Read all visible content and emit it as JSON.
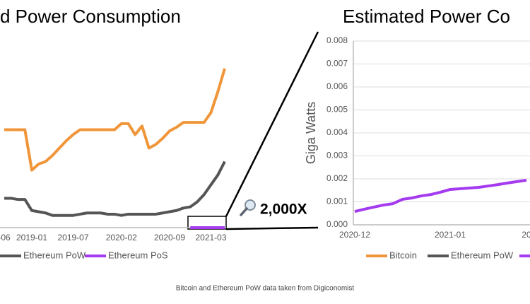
{
  "chart_data": [
    {
      "type": "line",
      "title": "d Power Consumption",
      "categories": [
        "-06",
        null,
        null,
        null,
        "2019-01",
        null,
        null,
        null,
        null,
        null,
        "2019-07",
        null,
        null,
        null,
        null,
        null,
        null,
        "2020-02",
        null,
        null,
        null,
        null,
        null,
        null,
        "2020-09",
        null,
        null,
        null,
        null,
        null,
        "2021-03",
        null,
        null
      ],
      "ylim": [
        0,
        16
      ],
      "series": [
        {
          "color": "#f0963a",
          "values": [
            8.0,
            8.0,
            8.0,
            8.0,
            4.7,
            5.2,
            5.4,
            5.9,
            6.5,
            7.1,
            7.6,
            8.0,
            8.0,
            8.0,
            8.0,
            8.0,
            8.0,
            8.5,
            8.5,
            7.6,
            8.3,
            6.5,
            6.8,
            7.3,
            7.9,
            8.2,
            8.6,
            8.6,
            8.6,
            8.6,
            9.4,
            11.1,
            13.0
          ]
        },
        {
          "name": "Ethereum PoW",
          "color": "#555555",
          "values": [
            2.4,
            2.4,
            2.3,
            2.3,
            1.4,
            1.3,
            1.2,
            1.0,
            1.0,
            1.0,
            1.0,
            1.1,
            1.2,
            1.2,
            1.2,
            1.1,
            1.1,
            1.0,
            1.1,
            1.1,
            1.1,
            1.1,
            1.1,
            1.2,
            1.3,
            1.4,
            1.6,
            1.7,
            2.1,
            2.7,
            3.5,
            4.3,
            5.4
          ]
        },
        {
          "name": "Ethereum PoS",
          "color": "#a43bf0",
          "values": [
            null,
            null,
            null,
            null,
            null,
            null,
            null,
            null,
            null,
            null,
            null,
            null,
            null,
            null,
            null,
            null,
            null,
            null,
            null,
            null,
            null,
            null,
            null,
            null,
            null,
            null,
            null,
            0.0005,
            0.0006,
            0.0008,
            0.001,
            0.0013,
            0.0016
          ]
        }
      ],
      "annotation": "2,000X",
      "source": "Bitcoin and Ethereum PoW data taken from Digiconomist"
    },
    {
      "type": "line",
      "title": "Estimated Power Co",
      "y_label": "Giga Watts",
      "categories": [
        "2020-12",
        null,
        null,
        null,
        null,
        null,
        null,
        null,
        null,
        null,
        "2021-01",
        null,
        null,
        null,
        null,
        null,
        null,
        null,
        "20"
      ],
      "ylim": [
        0,
        0.008
      ],
      "yticks": [
        {
          "value": 0,
          "label": "0.000"
        },
        {
          "value": 0.001,
          "label": "0.001"
        },
        {
          "value": 0.002,
          "label": "0.002"
        },
        {
          "value": 0.003,
          "label": "0.003"
        },
        {
          "value": 0.004,
          "label": "0.004"
        },
        {
          "value": 0.005,
          "label": "0.005"
        },
        {
          "value": 0.006,
          "label": "0.006"
        },
        {
          "value": 0.007,
          "label": "0.007"
        },
        {
          "value": 0.008,
          "label": "0.008"
        }
      ],
      "grid": true,
      "series": [
        {
          "color": "#a43bf0",
          "values": [
            0.00058,
            0.00068,
            0.00077,
            0.00086,
            0.00092,
            0.00111,
            0.00117,
            0.00126,
            0.00132,
            0.00142,
            0.00154,
            0.00157,
            0.0016,
            0.00163,
            0.00169,
            0.00175,
            0.00182,
            0.00188,
            0.00194
          ]
        }
      ],
      "legend": [
        {
          "name": "Bitcoin",
          "color": "#f0963a"
        },
        {
          "name": "Ethereum PoW",
          "color": "#555555"
        },
        {
          "color": "#a43bf0"
        }
      ]
    }
  ]
}
